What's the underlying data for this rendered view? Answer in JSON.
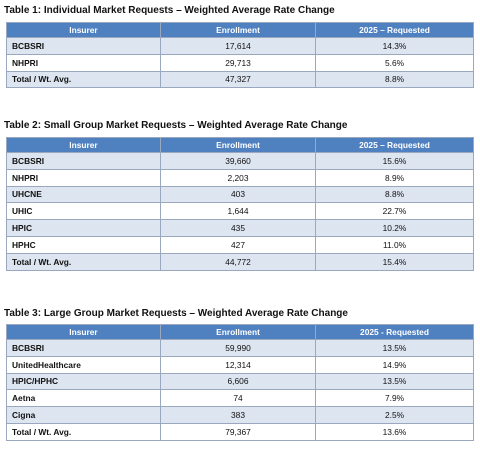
{
  "tables": [
    {
      "caption": "Table 1: Individual Market Requests – Weighted Average Rate Change",
      "headers": [
        "Insurer",
        "Enrollment",
        "2025 – Requested"
      ],
      "rows": [
        {
          "insurer": "BCBSRI",
          "enrollment": "17,614",
          "requested": "14.3%"
        },
        {
          "insurer": "NHPRI",
          "enrollment": "29,713",
          "requested": "5.6%"
        },
        {
          "insurer": "Total / Wt. Avg.",
          "enrollment": "47,327",
          "requested": "8.8%"
        }
      ]
    },
    {
      "caption": "Table 2: Small Group Market Requests – Weighted Average Rate Change",
      "headers": [
        "Insurer",
        "Enrollment",
        "2025 – Requested"
      ],
      "rows": [
        {
          "insurer": "BCBSRI",
          "enrollment": "39,660",
          "requested": "15.6%"
        },
        {
          "insurer": "NHPRI",
          "enrollment": "2,203",
          "requested": "8.9%"
        },
        {
          "insurer": "UHCNE",
          "enrollment": "403",
          "requested": "8.8%"
        },
        {
          "insurer": "UHIC",
          "enrollment": "1,644",
          "requested": "22.7%"
        },
        {
          "insurer": "HPIC",
          "enrollment": "435",
          "requested": "10.2%"
        },
        {
          "insurer": "HPHC",
          "enrollment": "427",
          "requested": "11.0%"
        },
        {
          "insurer": "Total / Wt. Avg.",
          "enrollment": "44,772",
          "requested": "15.4%"
        }
      ]
    },
    {
      "caption": "Table 3: Large Group Market Requests – Weighted Average Rate Change",
      "headers": [
        "Insurer",
        "Enrollment",
        "2025 - Requested"
      ],
      "rows": [
        {
          "insurer": "BCBSRI",
          "enrollment": "59,990",
          "requested": "13.5%"
        },
        {
          "insurer": "UnitedHealthcare",
          "enrollment": "12,314",
          "requested": "14.9%"
        },
        {
          "insurer": "HPIC/HPHC",
          "enrollment": "6,606",
          "requested": "13.5%"
        },
        {
          "insurer": "Aetna",
          "enrollment": "74",
          "requested": "7.9%"
        },
        {
          "insurer": "Cigna",
          "enrollment": "383",
          "requested": "2.5%"
        },
        {
          "insurer": "Total / Wt. Avg.",
          "enrollment": "79,367",
          "requested": "13.6%"
        }
      ]
    }
  ]
}
